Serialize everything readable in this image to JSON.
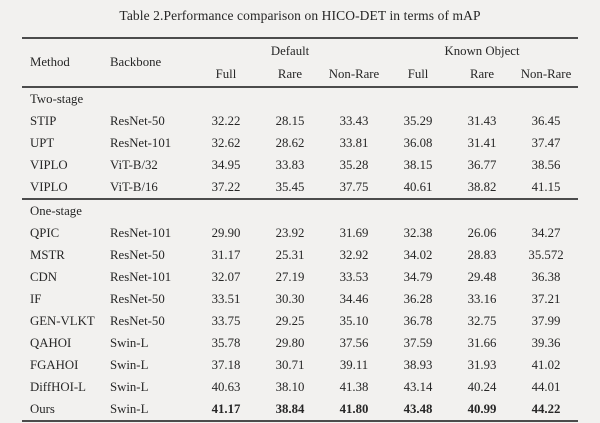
{
  "caption": "Table 2.Performance comparison on HICO-DET in terms of mAP",
  "header": {
    "method": "Method",
    "backbone": "Backbone",
    "groups": [
      {
        "label": "Default",
        "columns": [
          "Full",
          "Rare",
          "Non-Rare"
        ]
      },
      {
        "label": "Known Object",
        "columns": [
          "Full",
          "Rare",
          "Non-Rare"
        ]
      }
    ]
  },
  "sections": [
    {
      "label": "Two-stage",
      "rows": [
        {
          "method": "STIP",
          "backbone": "ResNet-50",
          "values": [
            "32.22",
            "28.15",
            "33.43",
            "35.29",
            "31.43",
            "36.45"
          ],
          "bold_values": false
        },
        {
          "method": "UPT",
          "backbone": "ResNet-101",
          "values": [
            "32.62",
            "28.62",
            "33.81",
            "36.08",
            "31.41",
            "37.47"
          ],
          "bold_values": false
        },
        {
          "method": "VIPLO",
          "backbone": "ViT-B/32",
          "values": [
            "34.95",
            "33.83",
            "35.28",
            "38.15",
            "36.77",
            "38.56"
          ],
          "bold_values": false
        },
        {
          "method": "VIPLO",
          "backbone": "ViT-B/16",
          "values": [
            "37.22",
            "35.45",
            "37.75",
            "40.61",
            "38.82",
            "41.15"
          ],
          "bold_values": false
        }
      ]
    },
    {
      "label": "One-stage",
      "rows": [
        {
          "method": "QPIC",
          "backbone": "ResNet-101",
          "values": [
            "29.90",
            "23.92",
            "31.69",
            "32.38",
            "26.06",
            "34.27"
          ],
          "bold_values": false
        },
        {
          "method": "MSTR",
          "backbone": "ResNet-50",
          "values": [
            "31.17",
            "25.31",
            "32.92",
            "34.02",
            "28.83",
            "35.572"
          ],
          "bold_values": false
        },
        {
          "method": "CDN",
          "backbone": "ResNet-101",
          "values": [
            "32.07",
            "27.19",
            "33.53",
            "34.79",
            "29.48",
            "36.38"
          ],
          "bold_values": false
        },
        {
          "method": "IF",
          "backbone": "ResNet-50",
          "values": [
            "33.51",
            "30.30",
            "34.46",
            "36.28",
            "33.16",
            "37.21"
          ],
          "bold_values": false
        },
        {
          "method": "GEN-VLKT",
          "backbone": "ResNet-50",
          "values": [
            "33.75",
            "29.25",
            "35.10",
            "36.78",
            "32.75",
            "37.99"
          ],
          "bold_values": false
        },
        {
          "method": "QAHOI",
          "backbone": "Swin-L",
          "values": [
            "35.78",
            "29.80",
            "37.56",
            "37.59",
            "31.66",
            "39.36"
          ],
          "bold_values": false
        },
        {
          "method": "FGAHOI",
          "backbone": "Swin-L",
          "values": [
            "37.18",
            "30.71",
            "39.11",
            "38.93",
            "31.93",
            "41.02"
          ],
          "bold_values": false
        },
        {
          "method": "DiffHOI-L",
          "backbone": "Swin-L",
          "values": [
            "40.63",
            "38.10",
            "41.38",
            "43.14",
            "40.24",
            "44.01"
          ],
          "bold_values": false
        },
        {
          "method": "Ours",
          "backbone": "Swin-L",
          "values": [
            "41.17",
            "38.84",
            "41.80",
            "43.48",
            "40.99",
            "44.22"
          ],
          "bold_values": true
        }
      ]
    }
  ]
}
